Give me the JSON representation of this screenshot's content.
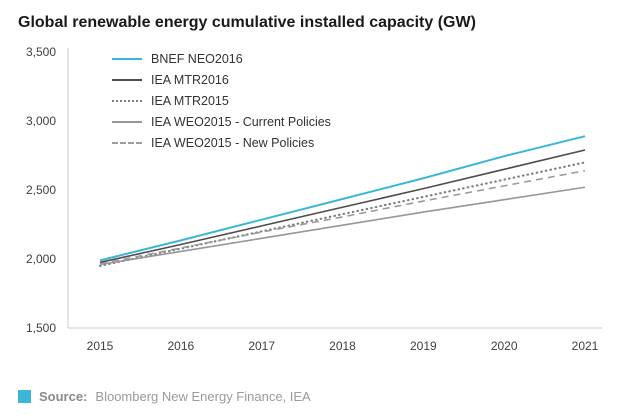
{
  "title": "Global renewable energy cumulative installed capacity (GW)",
  "source": {
    "label": "Source:",
    "text": "Bloomberg New Energy Finance, IEA"
  },
  "chart_data": {
    "type": "line",
    "title": "Global renewable energy cumulative installed capacity (GW)",
    "xlabel": "",
    "ylabel": "GW",
    "x": [
      2015,
      2016,
      2017,
      2018,
      2019,
      2020,
      2021
    ],
    "ylim": [
      1500,
      3500
    ],
    "yticks": [
      1500,
      2000,
      2500,
      3000,
      3500
    ],
    "ytick_labels": [
      "1,500",
      "2,000",
      "2,500",
      "3,000",
      "3,500"
    ],
    "grid": false,
    "legend_position": "top-left-inside",
    "axis_color": "#cccccc",
    "series": [
      {
        "name": "BNEF NEO2016",
        "values": [
          1990,
          2135,
          2285,
          2435,
          2585,
          2745,
          2890
        ],
        "color": "#3ab7d8",
        "dash": "solid",
        "width": 2
      },
      {
        "name": "IEA MTR2016",
        "values": [
          1975,
          2105,
          2240,
          2375,
          2510,
          2650,
          2790
        ],
        "color": "#4d4d4d",
        "dash": "solid",
        "width": 1.6
      },
      {
        "name": "IEA MTR2015",
        "values": [
          1950,
          2075,
          2200,
          2325,
          2450,
          2575,
          2700
        ],
        "color": "#7f7f7f",
        "dash": "dotted",
        "width": 2
      },
      {
        "name": "IEA WEO2015 - Current Policies",
        "values": [
          1960,
          2055,
          2150,
          2245,
          2340,
          2430,
          2520
        ],
        "color": "#98959e",
        "dash": "solid",
        "width": 1.6
      },
      {
        "name": "IEA WEO2015 - New Policies",
        "values": [
          1965,
          2080,
          2195,
          2305,
          2420,
          2530,
          2640
        ],
        "color": "#9a9aa0",
        "dash": "dashed",
        "width": 1.6
      }
    ]
  }
}
